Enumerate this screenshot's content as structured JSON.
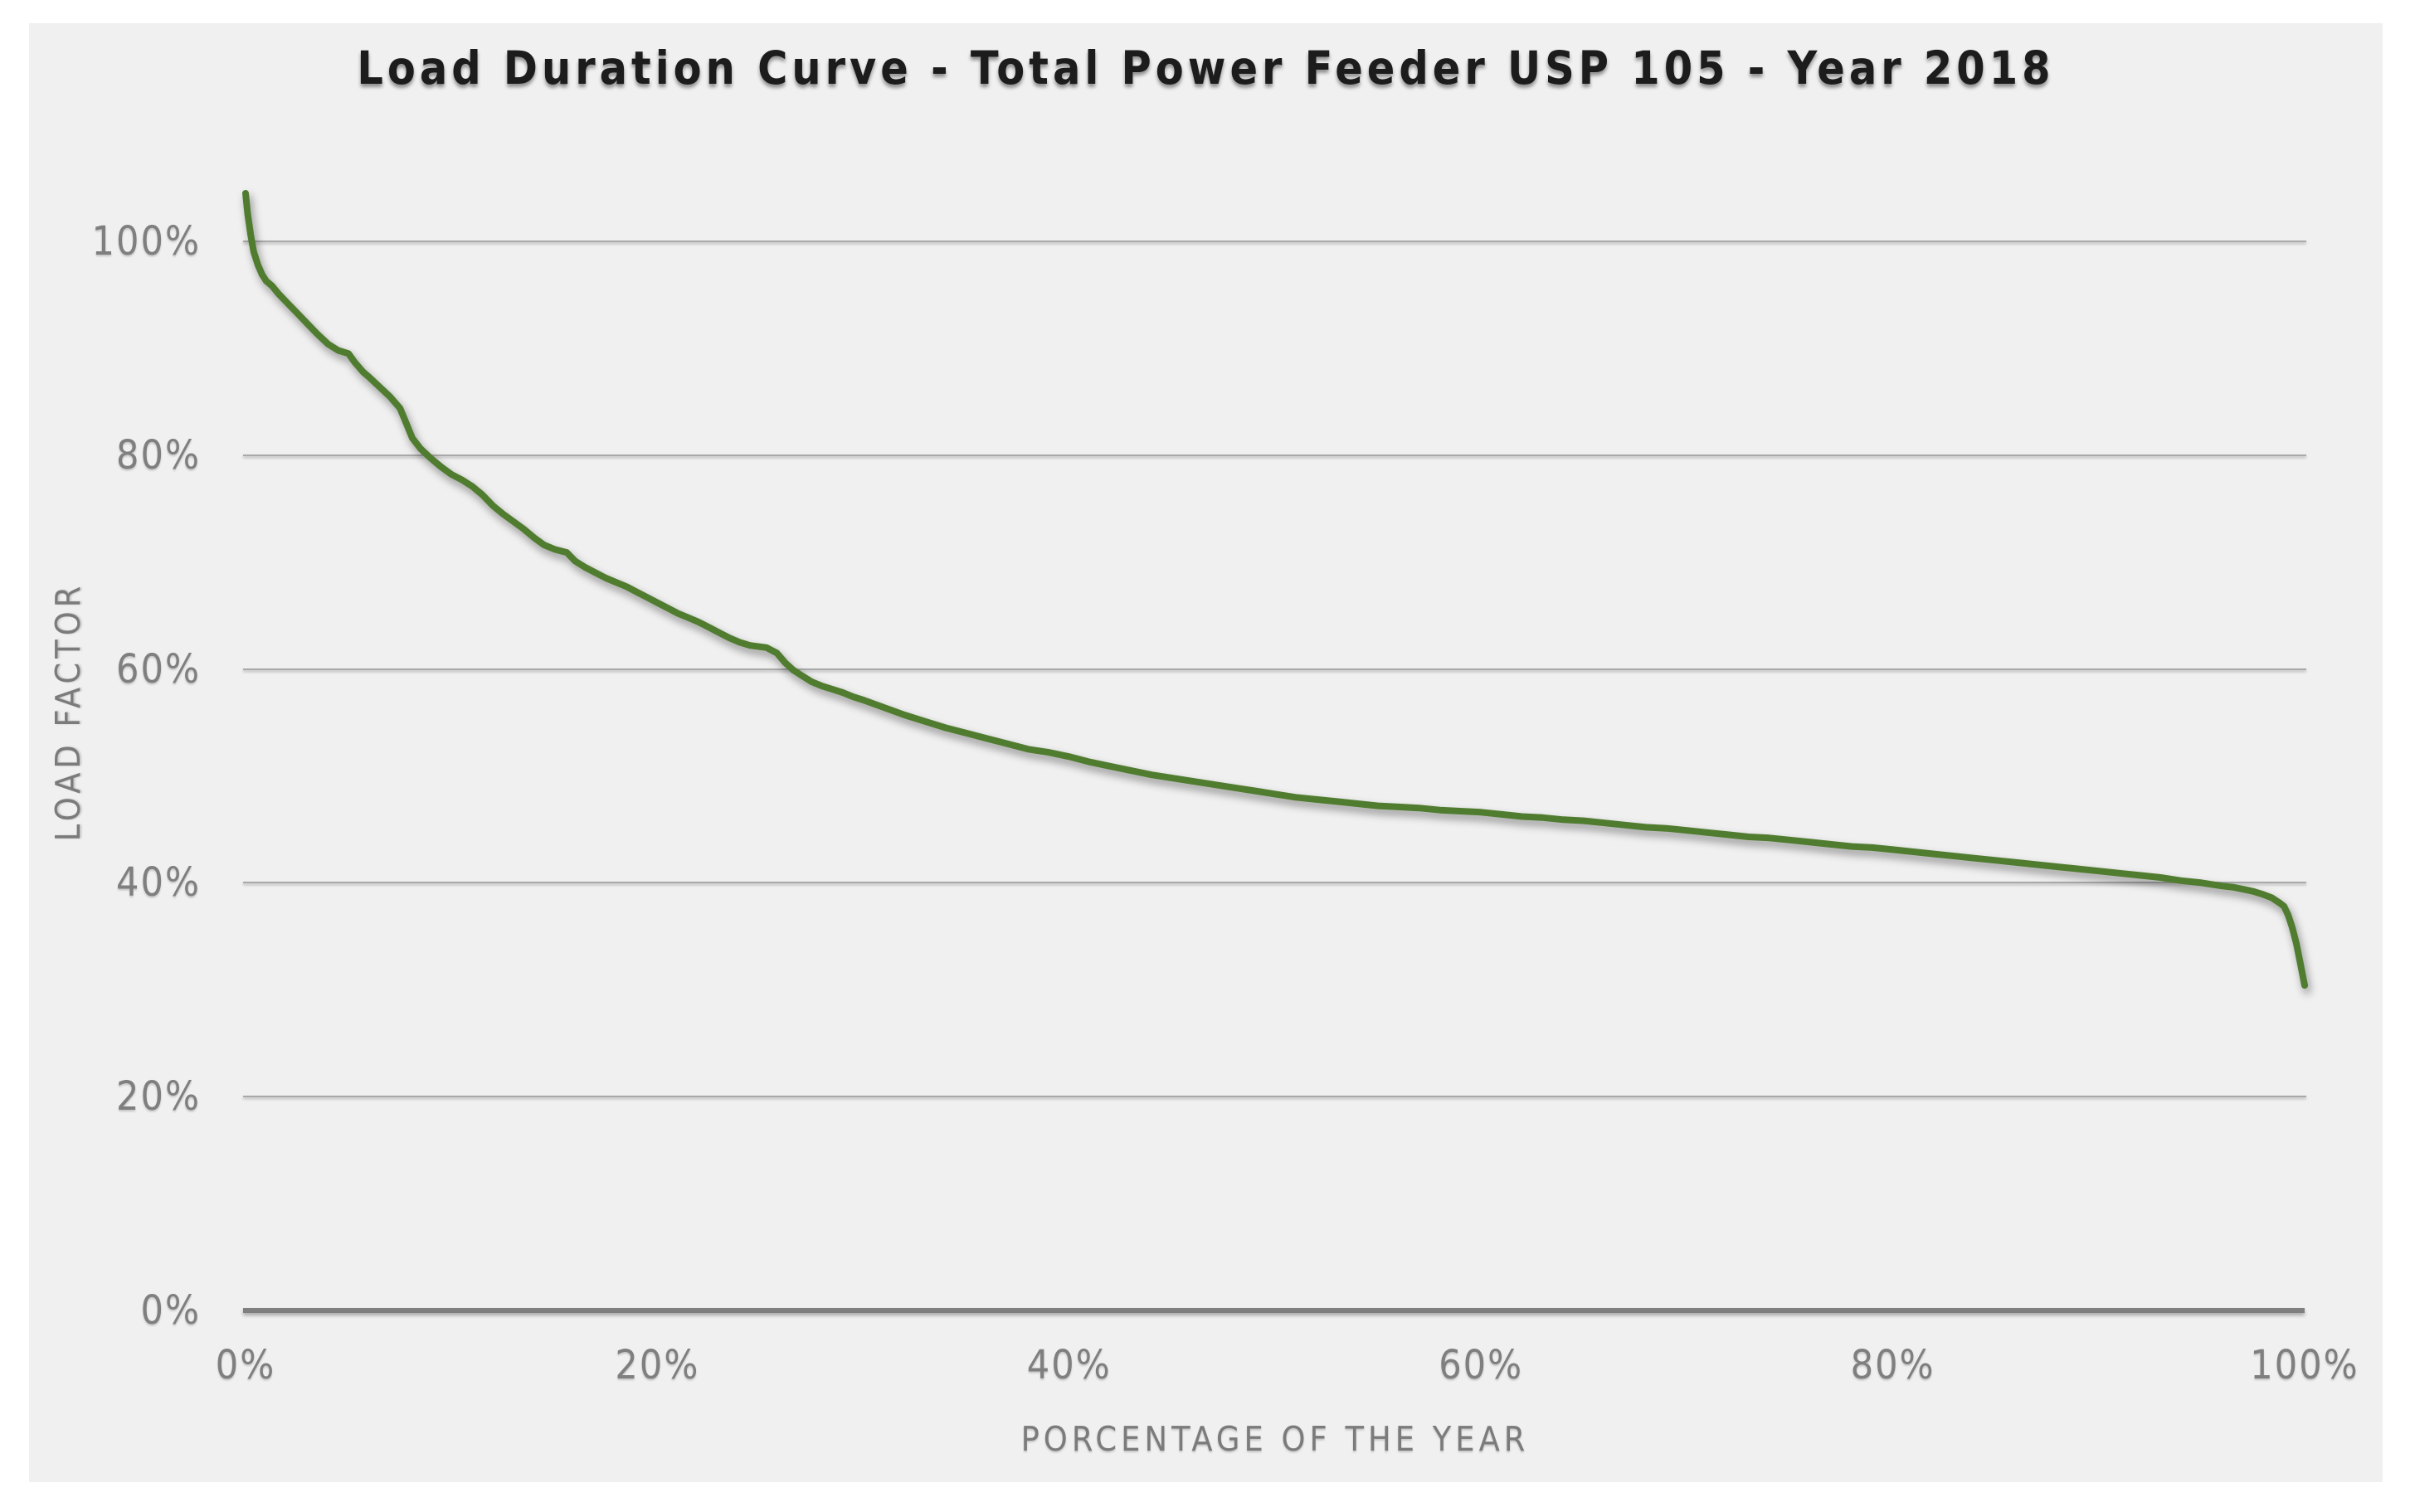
{
  "title": "Load Duration Curve - Total Power Feeder USP 105 - Year 2018",
  "colors": {
    "curve": "#507c2f",
    "panel_bg": "#f0f0f0",
    "page_bg": "#ffffff",
    "gridline": "#a9a9a9",
    "axis_line": "#7f7f7f",
    "label_gray": "#7f7f7f",
    "title_text": "#1c1c1c"
  },
  "chart_data": {
    "type": "line",
    "title": "Load Duration Curve - Total Power Feeder USP 105 - Year 2018",
    "xlabel": "PORCENTAGE OF THE YEAR",
    "ylabel": "LOAD FACTOR",
    "x_ticks": [
      "0%",
      "20%",
      "40%",
      "60%",
      "80%",
      "100%"
    ],
    "y_ticks": [
      "0%",
      "20%",
      "40%",
      "60%",
      "80%",
      "100%"
    ],
    "x_tick_values": [
      0,
      20,
      40,
      60,
      80,
      100
    ],
    "y_tick_values": [
      0,
      20,
      40,
      60,
      80,
      100
    ],
    "xlim": [
      0,
      100
    ],
    "ylim": [
      0,
      105
    ],
    "grid": "horizontal",
    "legend": "none",
    "series": [
      {
        "name": "load_factor",
        "points": [
          [
            0,
            104.5
          ],
          [
            0.1,
            102.6
          ],
          [
            0.25,
            100.6
          ],
          [
            0.4,
            99.0
          ],
          [
            0.6,
            97.8
          ],
          [
            0.8,
            96.9
          ],
          [
            1,
            96.3
          ],
          [
            1.3,
            95.8
          ],
          [
            1.6,
            95.1
          ],
          [
            2,
            94.3
          ],
          [
            2.5,
            93.3
          ],
          [
            3,
            92.3
          ],
          [
            3.5,
            91.3
          ],
          [
            4,
            90.4
          ],
          [
            4.5,
            89.8
          ],
          [
            5,
            89.5
          ],
          [
            5.3,
            88.7
          ],
          [
            5.7,
            87.8
          ],
          [
            6,
            87.3
          ],
          [
            6.5,
            86.4
          ],
          [
            7,
            85.5
          ],
          [
            7.5,
            84.4
          ],
          [
            7.8,
            83.0
          ],
          [
            8.1,
            81.6
          ],
          [
            8.5,
            80.6
          ],
          [
            9,
            79.7
          ],
          [
            9.5,
            78.9
          ],
          [
            10,
            78.2
          ],
          [
            10.5,
            77.7
          ],
          [
            11,
            77.1
          ],
          [
            11.5,
            76.3
          ],
          [
            12,
            75.3
          ],
          [
            12.5,
            74.5
          ],
          [
            13,
            73.8
          ],
          [
            13.5,
            73.1
          ],
          [
            14,
            72.3
          ],
          [
            14.5,
            71.6
          ],
          [
            15,
            71.2
          ],
          [
            15.6,
            70.9
          ],
          [
            16,
            70.1
          ],
          [
            16.5,
            69.5
          ],
          [
            17,
            69.0
          ],
          [
            17.5,
            68.5
          ],
          [
            18,
            68.1
          ],
          [
            18.5,
            67.7
          ],
          [
            19,
            67.2
          ],
          [
            19.5,
            66.7
          ],
          [
            20,
            66.2
          ],
          [
            20.5,
            65.7
          ],
          [
            21,
            65.2
          ],
          [
            21.5,
            64.8
          ],
          [
            22,
            64.4
          ],
          [
            22.5,
            63.9
          ],
          [
            23,
            63.4
          ],
          [
            23.5,
            62.9
          ],
          [
            24,
            62.5
          ],
          [
            24.5,
            62.2
          ],
          [
            25.3,
            62.0
          ],
          [
            25.8,
            61.5
          ],
          [
            26.2,
            60.6
          ],
          [
            26.6,
            59.9
          ],
          [
            27,
            59.4
          ],
          [
            27.5,
            58.8
          ],
          [
            28,
            58.4
          ],
          [
            28.5,
            58.1
          ],
          [
            29,
            57.8
          ],
          [
            29.5,
            57.4
          ],
          [
            30,
            57.1
          ],
          [
            31,
            56.4
          ],
          [
            32,
            55.7
          ],
          [
            33,
            55.1
          ],
          [
            34,
            54.5
          ],
          [
            35,
            54.0
          ],
          [
            36,
            53.5
          ],
          [
            37,
            53.0
          ],
          [
            38,
            52.5
          ],
          [
            39,
            52.2
          ],
          [
            40,
            51.8
          ],
          [
            41,
            51.3
          ],
          [
            42,
            50.9
          ],
          [
            43,
            50.5
          ],
          [
            44,
            50.1
          ],
          [
            45,
            49.8
          ],
          [
            46,
            49.5
          ],
          [
            47,
            49.2
          ],
          [
            48,
            48.9
          ],
          [
            49,
            48.6
          ],
          [
            50,
            48.3
          ],
          [
            51,
            48.0
          ],
          [
            52,
            47.8
          ],
          [
            53,
            47.6
          ],
          [
            54,
            47.4
          ],
          [
            55,
            47.2
          ],
          [
            56,
            47.1
          ],
          [
            57,
            47.0
          ],
          [
            58,
            46.8
          ],
          [
            59,
            46.7
          ],
          [
            60,
            46.6
          ],
          [
            61,
            46.4
          ],
          [
            62,
            46.2
          ],
          [
            63,
            46.1
          ],
          [
            64,
            45.9
          ],
          [
            65,
            45.8
          ],
          [
            66,
            45.6
          ],
          [
            67,
            45.4
          ],
          [
            68,
            45.2
          ],
          [
            69,
            45.1
          ],
          [
            70,
            44.9
          ],
          [
            71,
            44.7
          ],
          [
            72,
            44.5
          ],
          [
            73,
            44.3
          ],
          [
            74,
            44.2
          ],
          [
            75,
            44.0
          ],
          [
            76,
            43.8
          ],
          [
            77,
            43.6
          ],
          [
            78,
            43.4
          ],
          [
            79,
            43.3
          ],
          [
            80,
            43.1
          ],
          [
            81,
            42.9
          ],
          [
            82,
            42.7
          ],
          [
            83,
            42.5
          ],
          [
            84,
            42.3
          ],
          [
            85,
            42.1
          ],
          [
            86,
            41.9
          ],
          [
            87,
            41.7
          ],
          [
            88,
            41.5
          ],
          [
            89,
            41.3
          ],
          [
            90,
            41.1
          ],
          [
            91,
            40.9
          ],
          [
            92,
            40.7
          ],
          [
            93,
            40.5
          ],
          [
            94,
            40.2
          ],
          [
            95,
            40.0
          ],
          [
            96,
            39.7
          ],
          [
            96.5,
            39.6
          ],
          [
            97,
            39.4
          ],
          [
            97.5,
            39.2
          ],
          [
            98,
            38.9
          ],
          [
            98.4,
            38.6
          ],
          [
            98.8,
            38.1
          ],
          [
            99,
            37.8
          ],
          [
            99.2,
            37.0
          ],
          [
            99.4,
            35.8
          ],
          [
            99.6,
            34.3
          ],
          [
            99.8,
            32.4
          ],
          [
            100,
            30.4
          ]
        ]
      }
    ]
  }
}
